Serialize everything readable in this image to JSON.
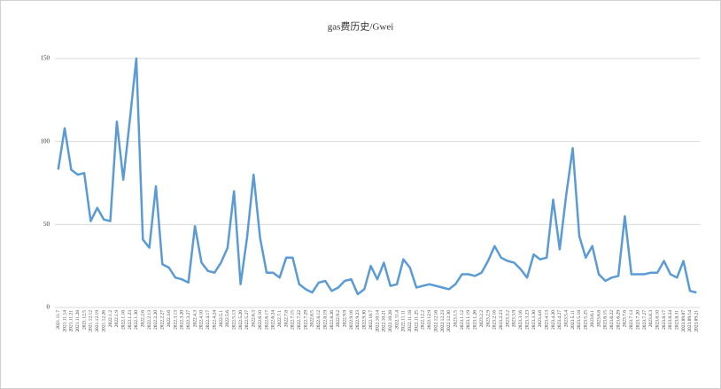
{
  "chart_data": {
    "type": "line",
    "title": "gas费历史/Gwei",
    "categories": [
      "2021.11.7",
      "2021.11.14",
      "2021.11.21",
      "2021.11.28",
      "2021.12.5",
      "2021.12.12",
      "2021.12.19",
      "2021.12.26",
      "2022.1.2",
      "2022.1.9",
      "2022.1.16",
      "2022.1.23",
      "2022.1.30",
      "2022.2.6",
      "2022.2.13",
      "2022.2.20",
      "2022.2.27",
      "2022.3.6",
      "2022.3.13",
      "2022.3.20",
      "2022.3.27",
      "2022.4.3",
      "2022.4.10",
      "2022.4.17",
      "2022.4.24",
      "2022.5.1",
      "2022.5.6",
      "2022.5.13",
      "2022.5.20",
      "2022.5.27",
      "2022.6.3",
      "2022.6.10",
      "2022.6.17",
      "2022.6.24",
      "2022.7.1",
      "2022.7.8",
      "2022.7.15",
      "2022.7.22",
      "2022.7.29",
      "2022.8.5",
      "2022.8.12",
      "2022.8.19",
      "2022.8.26",
      "2022.9.2",
      "2022.9.9",
      "2022.9.16",
      "2022.9.23",
      "2022.9.30",
      "2022.10.7",
      "2022.10.14",
      "2022.10.21",
      "2022.10.28",
      "2022.11.4",
      "2022.11.11",
      "2022.11.18",
      "2022.11.25",
      "2022.12.2",
      "2022.12.9",
      "2022.12.16",
      "2022.12.23",
      "2022.12.30",
      "2023.1.5",
      "2023.1.12",
      "2023.1.19",
      "2023.1.26",
      "2023.2.2",
      "2023.2.9",
      "2023.2.16",
      "2023.2.23",
      "2023.3.2",
      "2023.3.9",
      "2023.3.16",
      "2023.3.23",
      "2023.3.30",
      "2023.4.6",
      "2023.4.13",
      "2023.4.20",
      "2023.4.27",
      "2023.5.4",
      "2023.5.11",
      "2023.5.18",
      "2023.5.25",
      "2023.6.1",
      "2023.6.8",
      "2023.6.15",
      "2023.6.22",
      "2023.6.29",
      "2023.7.6",
      "2023.7.13",
      "2023.7.20",
      "2023.7.27",
      "2023.8.3",
      "2023.8.10",
      "2023.8.17",
      "2023.8.24",
      "2023.8.31",
      "2023.09.07",
      "2023.09.14",
      "2023.09.21"
    ],
    "values": [
      83,
      108,
      83,
      80,
      81,
      52,
      60,
      53,
      52,
      112,
      77,
      113,
      150,
      41,
      36,
      73,
      26,
      24,
      18,
      17,
      15,
      49,
      27,
      22,
      21,
      27,
      36,
      70,
      14,
      42,
      80,
      42,
      21,
      21,
      18,
      30,
      30,
      14,
      11,
      9,
      15,
      16,
      10,
      12,
      16,
      17,
      8,
      11,
      25,
      17,
      27,
      13,
      14,
      29,
      24,
      12,
      13,
      14,
      13,
      12,
      11,
      14,
      20,
      20,
      19,
      21,
      28,
      37,
      30,
      28,
      27,
      23,
      18,
      32,
      29,
      30,
      65,
      35,
      68,
      96,
      43,
      30,
      37,
      20,
      16,
      18,
      19,
      55,
      20,
      20,
      20,
      21,
      21,
      28,
      20,
      18,
      28,
      10,
      9
    ],
    "color": "#5b9bd5",
    "ylim": [
      0,
      150
    ],
    "yticks": [
      0,
      50,
      100,
      150
    ],
    "grid": true
  }
}
